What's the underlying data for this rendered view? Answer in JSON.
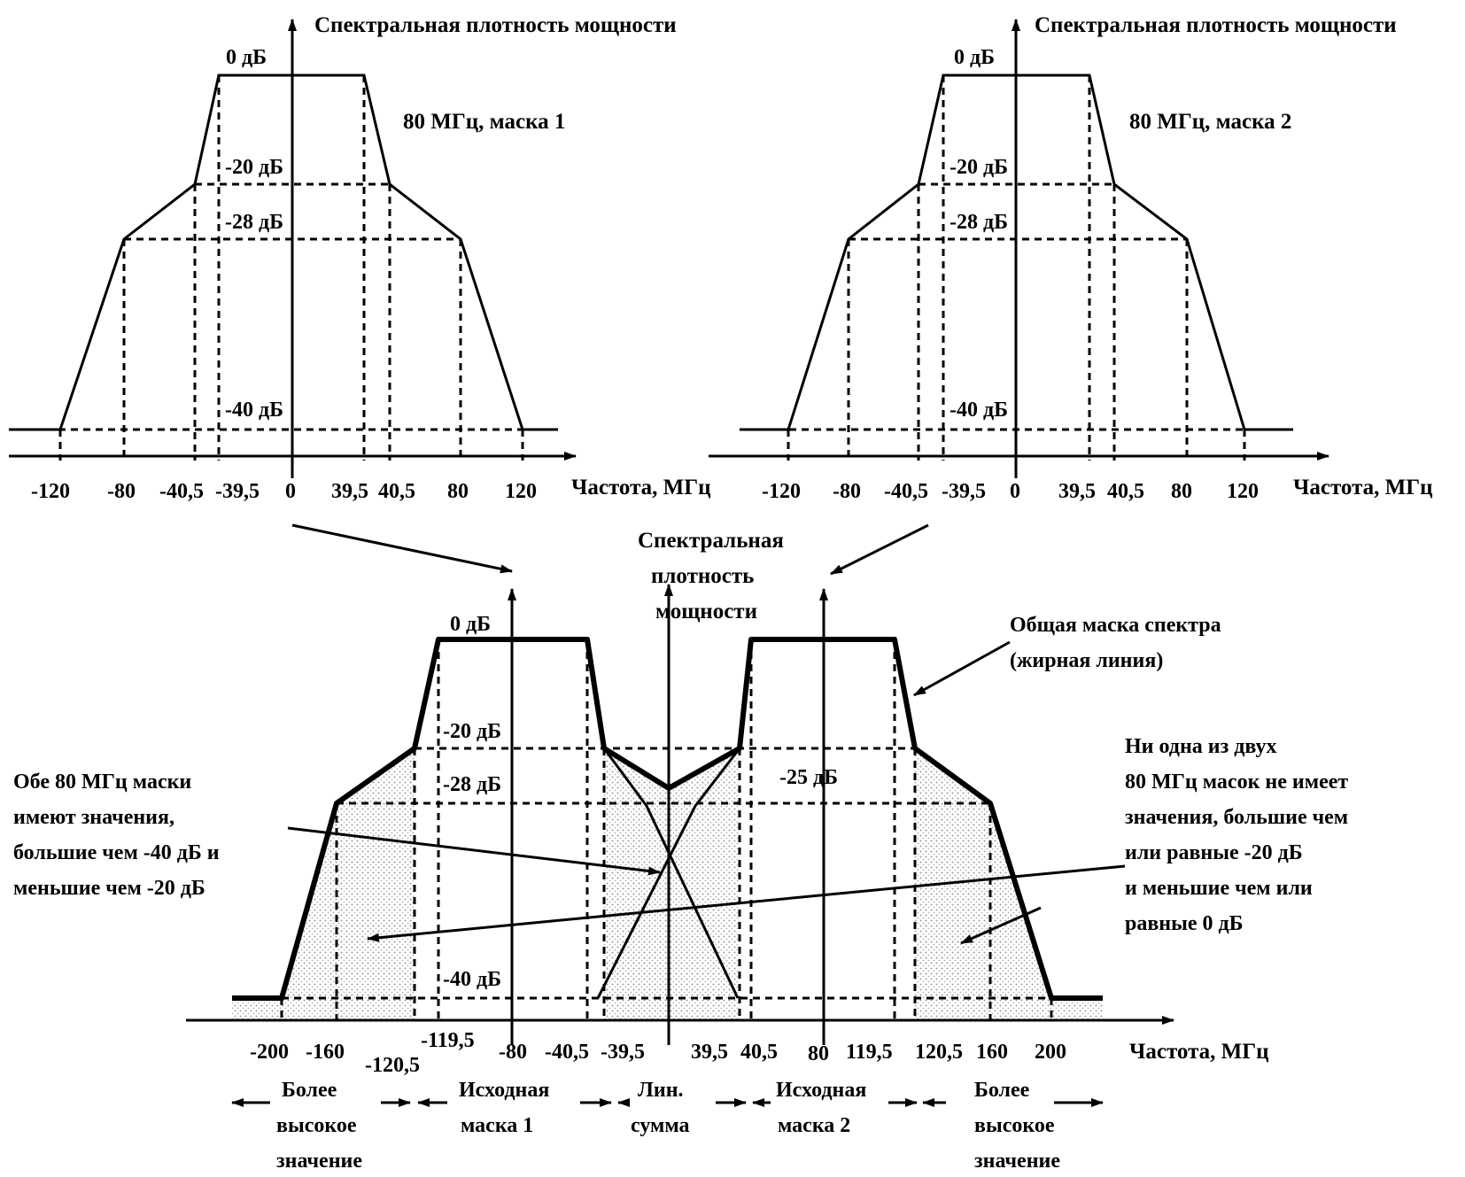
{
  "panel1": {
    "ylabel": "Спектральная плотность мощности",
    "xlabel": "Частота, МГц",
    "title": "80 МГц, маска 1",
    "levels": [
      "0 дБ",
      "-20 дБ",
      "-28 дБ",
      "-40 дБ"
    ],
    "ticks": [
      "-120",
      "-80",
      "-40,5",
      "-39,5",
      "0",
      "39,5",
      "40,5",
      "80",
      "120"
    ]
  },
  "panel2": {
    "ylabel": "Спектральная плотность мощности",
    "xlabel": "Частота, МГц",
    "title": "80 МГц, маска 2",
    "levels": [
      "0 дБ",
      "-20 дБ",
      "-28 дБ",
      "-40 дБ"
    ],
    "ticks": [
      "-120",
      "-80",
      "-40,5",
      "-39,5",
      "0",
      "39,5",
      "40,5",
      "80",
      "120"
    ]
  },
  "panel3": {
    "ylabel_lines": [
      "Спектральная",
      "плотность",
      "мощности"
    ],
    "xlabel": "Частота, МГц",
    "levels": [
      "0 дБ",
      "-20 дБ",
      "-28 дБ",
      "-40 дБ",
      "-25 дБ"
    ],
    "ticks_row1": [
      "-200",
      "-160",
      "-80",
      "-40,5",
      "-39,5",
      "39,5",
      "40,5",
      "80",
      "119,5",
      "120,5",
      "160",
      "200"
    ],
    "tick_m1195": "-119,5",
    "tick_m1205": "-120,5",
    "annot_bold": [
      "Общая маска спектра",
      "(жирная линия)"
    ],
    "annot_left": [
      "Обе 80 МГц маски",
      "имеют значения,",
      "большие чем -40 дБ и",
      "меньшие чем -20 дБ"
    ],
    "annot_right": [
      "Ни одна из двух",
      "80 МГц масок не имеет",
      "значения, большие чем",
      "или равные -20 дБ",
      "и меньшие чем или",
      "равные 0 дБ"
    ],
    "regions": {
      "higher_left": [
        "Более",
        "высокое",
        "значение"
      ],
      "orig1": [
        "Исходная",
        "маска 1"
      ],
      "linsum": [
        "Лин.",
        "сумма"
      ],
      "orig2": [
        "Исходная",
        "маска 2"
      ],
      "higher_right": [
        "Более",
        "высокое",
        "значение"
      ]
    }
  }
}
